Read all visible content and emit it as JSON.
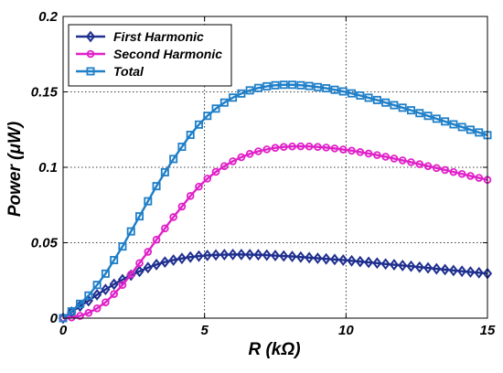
{
  "chart_data": {
    "type": "line",
    "xlabel": "R (kΩ)",
    "ylabel": "Power (μW)",
    "xlim": [
      0,
      15
    ],
    "ylim": [
      0,
      0.2
    ],
    "x_ticks": [
      0,
      5,
      10,
      15
    ],
    "y_ticks": [
      0,
      0.05,
      0.1,
      0.15,
      0.2
    ],
    "x_tick_labels": [
      "0",
      "5",
      "10",
      "15"
    ],
    "y_tick_labels": [
      "0",
      "0.05",
      "0.1",
      "0.15",
      "0.2"
    ],
    "grid": true,
    "grid_style": "dotted",
    "legend_position": "top-left",
    "x": [
      0,
      0.3,
      0.6,
      0.9,
      1.2,
      1.5,
      1.8,
      2.1,
      2.4,
      2.7,
      3.0,
      3.3,
      3.6,
      3.9,
      4.2,
      4.5,
      4.8,
      5.1,
      5.4,
      5.7,
      6.0,
      6.3,
      6.6,
      6.9,
      7.2,
      7.5,
      7.8,
      8.1,
      8.4,
      8.7,
      9.0,
      9.3,
      9.6,
      9.9,
      10.2,
      10.5,
      10.8,
      11.1,
      11.4,
      11.7,
      12.0,
      12.3,
      12.6,
      12.9,
      13.2,
      13.5,
      13.8,
      14.1,
      14.4,
      14.7,
      15.0
    ],
    "series": [
      {
        "name": "First Harmonic",
        "color": "#1f2f8f",
        "marker": "diamond",
        "values": [
          0,
          0.004,
          0.008,
          0.0115,
          0.0155,
          0.019,
          0.0225,
          0.0255,
          0.0285,
          0.031,
          0.0335,
          0.0355,
          0.0372,
          0.0385,
          0.0396,
          0.0405,
          0.0411,
          0.0416,
          0.0419,
          0.0421,
          0.0422,
          0.0422,
          0.0421,
          0.042,
          0.0418,
          0.0415,
          0.0412,
          0.0409,
          0.0405,
          0.0401,
          0.0397,
          0.0393,
          0.0389,
          0.0385,
          0.038,
          0.0375,
          0.037,
          0.0365,
          0.0359,
          0.0354,
          0.0349,
          0.0344,
          0.0338,
          0.0333,
          0.0327,
          0.0322,
          0.0316,
          0.0311,
          0.0306,
          0.0301,
          0.0296
        ]
      },
      {
        "name": "Second Harmonic",
        "color": "#e020c8",
        "marker": "circle",
        "values": [
          0,
          0.0005,
          0.0015,
          0.0035,
          0.0065,
          0.0105,
          0.016,
          0.022,
          0.029,
          0.0365,
          0.044,
          0.052,
          0.0595,
          0.067,
          0.074,
          0.081,
          0.0872,
          0.0925,
          0.097,
          0.1008,
          0.104,
          0.1067,
          0.1089,
          0.1106,
          0.1119,
          0.1129,
          0.1135,
          0.1138,
          0.1139,
          0.1138,
          0.1135,
          0.1131,
          0.1125,
          0.1118,
          0.111,
          0.1101,
          0.1091,
          0.1081,
          0.107,
          0.1058,
          0.1046,
          0.1034,
          0.1021,
          0.1008,
          0.0995,
          0.0982,
          0.0969,
          0.0956,
          0.0943,
          0.093,
          0.0917
        ]
      },
      {
        "name": "Total",
        "color": "#1f7fc8",
        "marker": "square",
        "values": [
          0,
          0.0045,
          0.0095,
          0.015,
          0.022,
          0.0295,
          0.0385,
          0.0475,
          0.0575,
          0.0675,
          0.0775,
          0.0875,
          0.0967,
          0.1055,
          0.1136,
          0.1215,
          0.1283,
          0.1341,
          0.1389,
          0.1429,
          0.1462,
          0.1489,
          0.151,
          0.1526,
          0.1537,
          0.1544,
          0.1547,
          0.1547,
          0.1544,
          0.1539,
          0.1532,
          0.1524,
          0.1514,
          0.1503,
          0.149,
          0.1476,
          0.1461,
          0.1446,
          0.1429,
          0.1412,
          0.1395,
          0.1378,
          0.1359,
          0.1341,
          0.1322,
          0.1304,
          0.1285,
          0.1267,
          0.1249,
          0.1231,
          0.1213
        ]
      }
    ]
  }
}
